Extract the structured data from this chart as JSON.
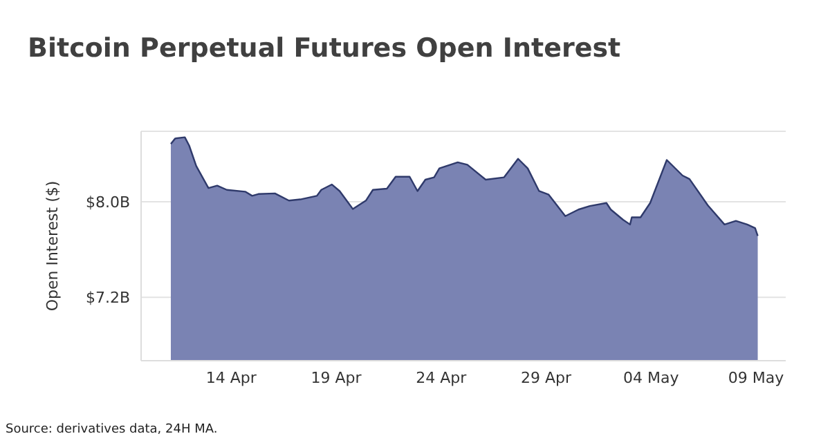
{
  "chart_data": {
    "type": "area",
    "title": "Bitcoin Perpetual Futures Open Interest",
    "ylabel": "Open Interest ($)",
    "annotations": [
      "Source: derivatives data, 24H MA."
    ],
    "x": [
      "--04-11T03:00",
      "--04-11T08:00",
      "--04-11T19:00",
      "--04-12T00:00",
      "--04-12T08:00",
      "--04-12T22:00",
      "--04-13T08:00",
      "--04-13T19:00",
      "--04-14T16:00",
      "--04-15T00:00",
      "--04-15T07:00",
      "--04-16T02:00",
      "--04-16T18:00",
      "--04-17T07:00",
      "--04-18T02:00",
      "--04-18T07:00",
      "--04-18T19:00",
      "--04-19T04:00",
      "--04-19T19:00",
      "--04-20T10:00",
      "--04-20T18:00",
      "--04-21T10:00",
      "--04-21T20:00",
      "--04-22T12:00",
      "--04-22T21:00",
      "--04-23T06:00",
      "--04-23T16:00",
      "--04-23T22:00",
      "--04-24T19:00",
      "--04-25T06:00",
      "--04-26T03:00",
      "--04-27T00:00",
      "--04-27T16:00",
      "--04-28T03:00",
      "--04-28T16:00",
      "--04-29T03:00",
      "--04-29T22:00",
      "--04-30T13:00",
      "--05-01T02:00",
      "--05-01T21:00",
      "--05-02T02:00",
      "--05-02T16:00",
      "--05-03T00:00",
      "--05-03T02:00",
      "--05-03T12:00",
      "--05-03T23:00",
      "--05-04T18:00",
      "--05-05T12:00",
      "--05-05T20:00",
      "--05-06T17:00",
      "--05-07T12:00",
      "--05-08T01:00",
      "--05-08T14:00",
      "--05-08T23:00",
      "--05-09T02:00"
    ],
    "series": [
      {
        "color": "#7a83b3",
        "values": [
          8.485,
          8.53,
          8.54,
          8.47,
          8.3,
          8.115,
          8.135,
          8.1,
          8.085,
          8.05,
          8.065,
          8.07,
          8.01,
          8.02,
          8.05,
          8.1,
          8.145,
          8.09,
          7.94,
          8.01,
          8.1,
          8.11,
          8.21,
          8.21,
          8.09,
          8.185,
          8.205,
          8.28,
          8.33,
          8.31,
          8.185,
          8.205,
          8.36,
          8.28,
          8.09,
          8.06,
          7.88,
          7.935,
          7.965,
          7.99,
          7.935,
          7.85,
          7.81,
          7.87,
          7.87,
          7.99,
          8.35,
          8.22,
          8.19,
          7.97,
          7.81,
          7.84,
          7.81,
          7.78,
          7.715
        ]
      }
    ],
    "xlim": [
      "--04-09T17:00",
      "--05-10T10:00"
    ],
    "xticks": [
      {
        "value": "--04-14",
        "label": "14 Apr"
      },
      {
        "value": "--04-19",
        "label": "19 Apr"
      },
      {
        "value": "--04-24",
        "label": "24 Apr"
      },
      {
        "value": "--04-29",
        "label": "29 Apr"
      },
      {
        "value": "--05-04",
        "label": "04 May"
      },
      {
        "value": "--05-09",
        "label": "09 May"
      }
    ],
    "ylim": [
      6.67,
      8.59
    ],
    "yticks": [
      {
        "value": 7.2,
        "label": "$7.2B"
      },
      {
        "value": 8.0,
        "label": "$8.0B"
      }
    ],
    "grid": "y",
    "legend": false
  }
}
